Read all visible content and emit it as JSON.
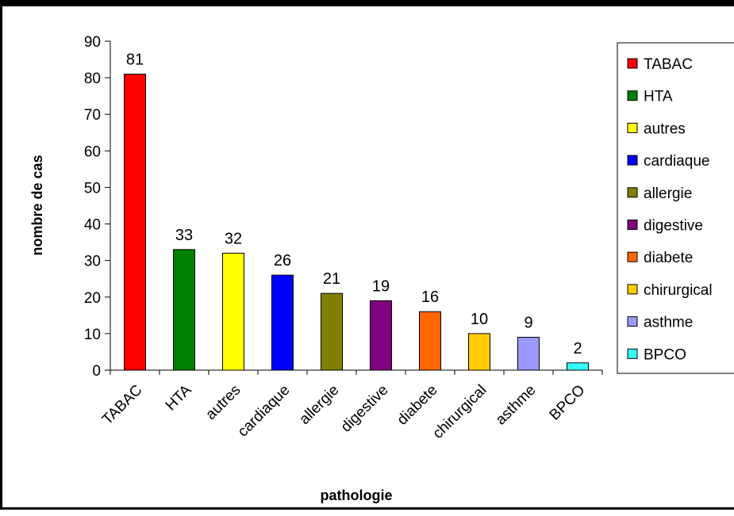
{
  "chart_data": {
    "type": "bar",
    "categories": [
      "TABAC",
      "HTA",
      "autres",
      "cardiaque",
      "allergie",
      "digestive",
      "diabete",
      "chirurgical",
      "asthme",
      "BPCO"
    ],
    "values": [
      81,
      33,
      32,
      26,
      21,
      19,
      16,
      10,
      9,
      2
    ],
    "colors": [
      "#ff0000",
      "#008000",
      "#ffff00",
      "#0000ff",
      "#808000",
      "#800080",
      "#ff6600",
      "#ffcc00",
      "#9999ff",
      "#33ffff"
    ],
    "xlabel": "pathologie",
    "ylabel": "nombre de cas",
    "ylim": [
      0,
      90
    ],
    "yticks": [
      0,
      10,
      20,
      30,
      40,
      50,
      60,
      70,
      80,
      90
    ],
    "legend_placement": "right",
    "grid": false,
    "data_labels": true
  }
}
